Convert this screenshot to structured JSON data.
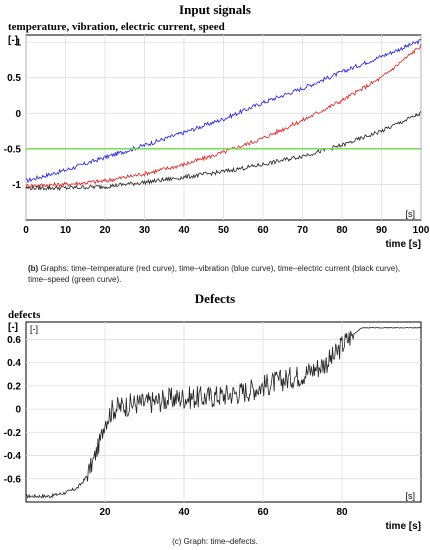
{
  "charts": [
    {
      "title": "Input signals",
      "subtitle": "temperature, vibration, electric current, speed",
      "caption_letter": "(b)",
      "caption_text": " Graphs: time–temperature (red curve), time–vibration (blue curve), time–electric current (black curve), time–speed (green curve).",
      "colors": {
        "red": "#e02020",
        "blue": "#2020e0",
        "black": "#222222",
        "green": "#66dd44"
      }
    },
    {
      "title": "Defects",
      "subtitle": "defects",
      "caption_letter": "(c)",
      "caption_text": " Graph: time–defects.",
      "colors": {
        "line": "#222222"
      }
    }
  ],
  "chart_data": [
    {
      "type": "line",
      "title": "Input signals",
      "ylabel": "[-]",
      "xlabel": "time [s]",
      "x_unit_note": "[s]",
      "xlim": [
        0,
        100
      ],
      "ylim": [
        -1.5,
        1.1
      ],
      "x_ticks": [
        0,
        10,
        20,
        30,
        40,
        50,
        60,
        70,
        80,
        90,
        100
      ],
      "y_ticks": [
        1,
        0.5,
        0,
        -0.5,
        -1
      ],
      "y_tick_labels": [
        "1",
        "0.5",
        "0",
        "-0.5",
        "-1"
      ],
      "grid": true,
      "series": [
        {
          "color": "blue",
          "x": [
            0,
            10,
            20,
            30,
            40,
            50,
            60,
            70,
            80,
            90,
            100
          ],
          "y": [
            -0.95,
            -0.8,
            -0.62,
            -0.45,
            -0.27,
            -0.08,
            0.15,
            0.35,
            0.58,
            0.8,
            1.02
          ]
        },
        {
          "color": "red",
          "x": [
            0,
            10,
            20,
            30,
            40,
            50,
            60,
            70,
            80,
            90,
            100
          ],
          "y": [
            -1.02,
            -1.0,
            -0.95,
            -0.85,
            -0.72,
            -0.55,
            -0.35,
            -0.1,
            0.18,
            0.5,
            0.95
          ]
        },
        {
          "color": "black",
          "x": [
            0,
            10,
            20,
            30,
            40,
            50,
            60,
            70,
            80,
            90,
            100
          ],
          "y": [
            -1.05,
            -1.05,
            -1.03,
            -0.97,
            -0.9,
            -0.82,
            -0.72,
            -0.6,
            -0.45,
            -0.25,
            0.0
          ]
        },
        {
          "color": "green",
          "x": [
            0,
            100
          ],
          "y": [
            -0.5,
            -0.5
          ]
        }
      ]
    },
    {
      "type": "line",
      "title": "Defects",
      "ylabel": "[-]",
      "inner_label": "[-]",
      "xlabel": "time [s]",
      "x_unit_note": "[s]",
      "xlim": [
        0,
        100
      ],
      "ylim": [
        -0.8,
        0.75
      ],
      "x_ticks": [
        20,
        40,
        60,
        80
      ],
      "y_ticks": [
        0.6,
        0.4,
        0.2,
        0,
        -0.2,
        -0.4,
        -0.6
      ],
      "y_tick_labels": [
        "0.6",
        "0.4",
        "0.2",
        "0",
        "-0.2",
        "-0.4",
        "-0.6"
      ],
      "grid": true,
      "series": [
        {
          "color": "line",
          "x": [
            0,
            6,
            10,
            13,
            15,
            17,
            19,
            20,
            22,
            25,
            28,
            30,
            35,
            40,
            45,
            50,
            55,
            58,
            60,
            62,
            65,
            68,
            70,
            72,
            75,
            78,
            80,
            82,
            85,
            90,
            95,
            100
          ],
          "y": [
            -0.75,
            -0.75,
            -0.72,
            -0.68,
            -0.6,
            -0.45,
            -0.25,
            -0.1,
            0.0,
            0.03,
            0.05,
            0.05,
            0.08,
            0.1,
            0.1,
            0.12,
            0.15,
            0.18,
            0.2,
            0.22,
            0.25,
            0.28,
            0.3,
            0.33,
            0.38,
            0.45,
            0.55,
            0.62,
            0.7,
            0.7,
            0.7,
            0.7
          ]
        }
      ]
    }
  ]
}
